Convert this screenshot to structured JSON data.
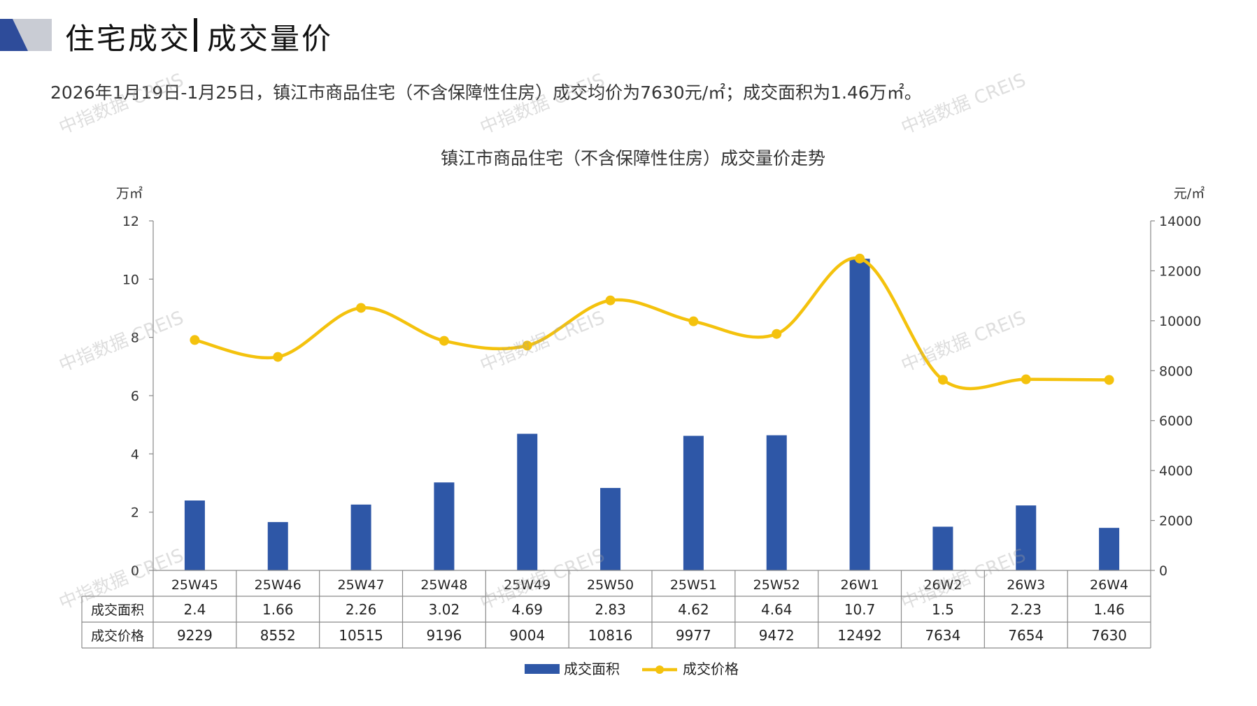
{
  "header": {
    "title_left": "住宅成交",
    "title_right": "成交量价",
    "summary": "2026年1月19日-1月25日，镇江市商品住宅（不含保障性住房）成交均价为7630元/㎡；成交面积为1.46万㎡。"
  },
  "watermark": "中指数据 CREIS",
  "colors": {
    "bar": "#2E57A7",
    "line": "#F4C20D",
    "logo_dark": "#2E4C9A",
    "logo_light": "#C9CCD4"
  },
  "chart_data": {
    "type": "bar+line",
    "title": "镇江市商品住宅（不含保障性住房）成交量价走势",
    "categories": [
      "25W45",
      "25W46",
      "25W47",
      "25W48",
      "25W49",
      "25W50",
      "25W51",
      "25W52",
      "26W1",
      "26W2",
      "26W3",
      "26W4"
    ],
    "series": [
      {
        "name": "成交面积",
        "type": "bar",
        "axis": "left",
        "values": [
          2.4,
          1.66,
          2.26,
          3.02,
          4.69,
          2.83,
          4.62,
          4.64,
          10.7,
          1.5,
          2.23,
          1.46
        ],
        "labels": [
          "2.4",
          "1.66",
          "2.26",
          "3.02",
          "4.69",
          "2.83",
          "4.62",
          "4.64",
          "10.7",
          "1.5",
          "2.23",
          "1.46"
        ]
      },
      {
        "name": "成交价格",
        "type": "line",
        "axis": "right",
        "smooth": true,
        "values": [
          9229,
          8552,
          10515,
          9196,
          9004,
          10816,
          9977,
          9472,
          12492,
          7634,
          7654,
          7630
        ]
      }
    ],
    "y_left": {
      "unit": "万㎡",
      "ticks": [
        0,
        2,
        4,
        6,
        8,
        10,
        12
      ],
      "ylim": [
        0,
        12
      ]
    },
    "y_right": {
      "unit": "元/㎡",
      "ticks": [
        0,
        2000,
        4000,
        6000,
        8000,
        10000,
        12000,
        14000
      ],
      "ylim": [
        0,
        14000
      ]
    },
    "grid": false,
    "data_table": true,
    "legend_position": "bottom-center"
  }
}
